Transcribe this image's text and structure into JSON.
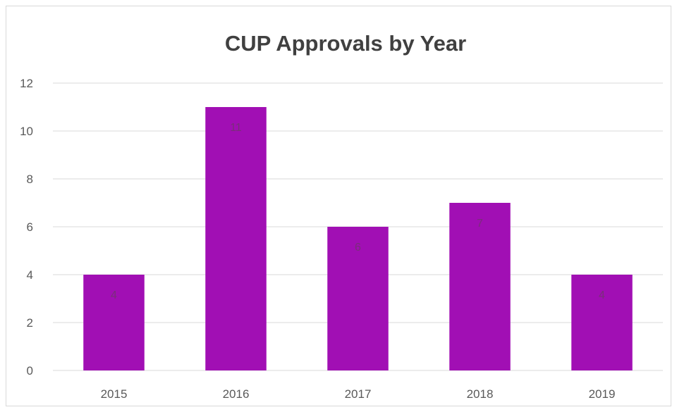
{
  "chart_data": {
    "type": "bar",
    "title": "CUP Approvals by Year",
    "categories": [
      "2015",
      "2016",
      "2017",
      "2018",
      "2019"
    ],
    "values": [
      4,
      11,
      6,
      7,
      4
    ],
    "data_labels": [
      "4",
      "11",
      "6",
      "7",
      "4"
    ],
    "ylim": [
      0,
      12
    ],
    "yticks": [
      0,
      2,
      4,
      6,
      8,
      10,
      12
    ],
    "grid": true,
    "legend": "none",
    "bar_color": "#a10fb4",
    "grid_color": "#d9d9d9"
  }
}
